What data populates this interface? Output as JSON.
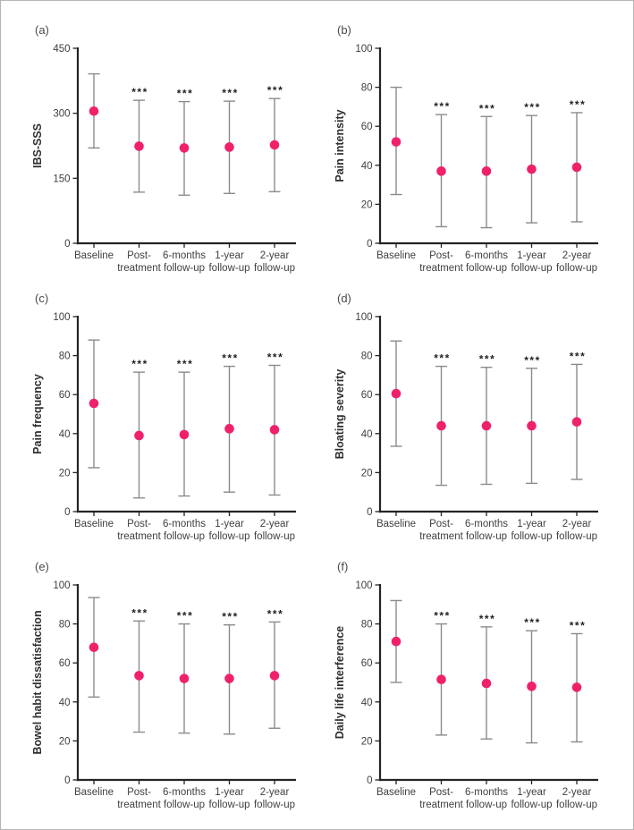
{
  "figure": {
    "colors": {
      "point": "#F0216B",
      "error_bar": "#8b8b8b",
      "axis": "#272324",
      "tick_text": "#3f3f3f",
      "axis_label": "#2f2f2f",
      "panel_letter": "#4a4a4a",
      "significance": "#1f1f1f",
      "background": "#ffffff",
      "border": "#b5b5b5"
    }
  },
  "chart_data": [
    {
      "type": "scatter",
      "panel_label": "(a)",
      "ylabel": "IBS-SSS",
      "ylim": [
        0,
        450
      ],
      "yticks": [
        0,
        150,
        300,
        450
      ],
      "categories": [
        "Baseline",
        "Post-\ntreatment",
        "6-months\nfollow-up",
        "1-year\nfollow-up",
        "2-year\nfollow-up"
      ],
      "series": [
        {
          "name": "mean with error bars",
          "means": [
            305,
            224,
            220,
            222,
            227
          ],
          "lower": [
            220,
            118,
            111,
            115,
            119
          ],
          "upper": [
            391,
            330,
            327,
            328,
            334
          ]
        }
      ],
      "significance": [
        "",
        "***",
        "***",
        "***",
        "***"
      ],
      "legend": "none",
      "grid": false
    },
    {
      "type": "scatter",
      "panel_label": "(b)",
      "ylabel": "Pain intensity",
      "ylim": [
        0,
        100
      ],
      "yticks": [
        0,
        20,
        40,
        60,
        80,
        100
      ],
      "categories": [
        "Baseline",
        "Post-\ntreatment",
        "6-months\nfollow-up",
        "1-year\nfollow-up",
        "2-year\nfollow-up"
      ],
      "series": [
        {
          "name": "mean with error bars",
          "means": [
            52,
            37,
            37,
            38,
            39
          ],
          "lower": [
            25,
            8.5,
            8,
            10.5,
            11
          ],
          "upper": [
            80,
            66,
            65,
            65.5,
            67
          ]
        }
      ],
      "significance": [
        "",
        "***",
        "***",
        "***",
        "***"
      ],
      "legend": "none",
      "grid": false
    },
    {
      "type": "scatter",
      "panel_label": "(c)",
      "ylabel": "Pain frequency",
      "ylim": [
        0,
        100
      ],
      "yticks": [
        0,
        20,
        40,
        60,
        80,
        100
      ],
      "categories": [
        "Baseline",
        "Post-\ntreatment",
        "6-months\nfollow-up",
        "1-year\nfollow-up",
        "2-year\nfollow-up"
      ],
      "series": [
        {
          "name": "mean with error bars",
          "means": [
            55.5,
            39,
            39.5,
            42.5,
            42
          ],
          "lower": [
            22.5,
            7,
            8,
            10,
            8.5
          ],
          "upper": [
            88,
            71.5,
            71.5,
            74.5,
            75
          ]
        }
      ],
      "significance": [
        "",
        "***",
        "***",
        "***",
        "***"
      ],
      "legend": "none",
      "grid": false
    },
    {
      "type": "scatter",
      "panel_label": "(d)",
      "ylabel": "Bloating severity",
      "ylim": [
        0,
        100
      ],
      "yticks": [
        0,
        20,
        40,
        60,
        80,
        100
      ],
      "categories": [
        "Baseline",
        "Post-\ntreatment",
        "6-months\nfollow-up",
        "1-year\nfollow-up",
        "2-year\nfollow-up"
      ],
      "series": [
        {
          "name": "mean with error bars",
          "means": [
            60.5,
            44,
            44,
            44,
            46
          ],
          "lower": [
            33.5,
            13.5,
            14,
            14.5,
            16.5
          ],
          "upper": [
            87.5,
            74.5,
            74,
            73.5,
            75.5
          ]
        }
      ],
      "significance": [
        "",
        "***",
        "***",
        "***",
        "***"
      ],
      "legend": "none",
      "grid": false
    },
    {
      "type": "scatter",
      "panel_label": "(e)",
      "ylabel": "Bowel habit dissatisfaction",
      "ylim": [
        0,
        100
      ],
      "yticks": [
        0,
        20,
        40,
        60,
        80,
        100
      ],
      "categories": [
        "Baseline",
        "Post-\ntreatment",
        "6-months\nfollow-up",
        "1-year\nfollow-up",
        "2-year\nfollow-up"
      ],
      "series": [
        {
          "name": "mean with error bars",
          "means": [
            68,
            53.5,
            52,
            52,
            53.5
          ],
          "lower": [
            42.5,
            24.5,
            24,
            23.5,
            26.5
          ],
          "upper": [
            93.5,
            81.5,
            80,
            79.5,
            81
          ]
        }
      ],
      "significance": [
        "",
        "***",
        "***",
        "***",
        "***"
      ],
      "legend": "none",
      "grid": false
    },
    {
      "type": "scatter",
      "panel_label": "(f)",
      "ylabel": "Daily life interference",
      "ylim": [
        0,
        100
      ],
      "yticks": [
        0,
        20,
        40,
        60,
        80,
        100
      ],
      "categories": [
        "Baseline",
        "Post-\ntreatment",
        "6-months\nfollow-up",
        "1-year\nfollow-up",
        "2-year\nfollow-up"
      ],
      "series": [
        {
          "name": "mean with error bars",
          "means": [
            71,
            51.5,
            49.5,
            48,
            47.5
          ],
          "lower": [
            50,
            23,
            21,
            19,
            19.5
          ],
          "upper": [
            92,
            80,
            78.5,
            76.5,
            75
          ]
        }
      ],
      "significance": [
        "",
        "***",
        "***",
        "***",
        "***"
      ],
      "legend": "none",
      "grid": false
    }
  ]
}
